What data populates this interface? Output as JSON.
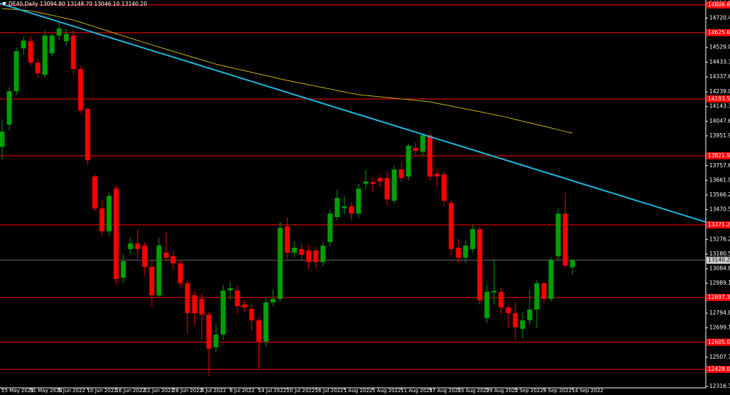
{
  "chart_data": {
    "type": "candlestick",
    "title": "DE40,Daily  13094.80 13148.70 13046.10 13140.20",
    "categories": [
      "25 May 2022",
      null,
      null,
      null,
      "31 May 2022",
      null,
      null,
      null,
      "6 Jun 2022",
      null,
      null,
      null,
      "10 Jun 2022",
      null,
      null,
      null,
      "16 Jun 2022",
      null,
      null,
      null,
      "22 Jun 2022",
      null,
      null,
      null,
      "28 Jun 2022",
      null,
      null,
      null,
      "4 Jul 2022",
      null,
      null,
      null,
      "8 Jul 2022",
      null,
      null,
      null,
      "14 Jul 2022",
      null,
      null,
      null,
      "20 Jul 2022",
      null,
      null,
      null,
      "26 Jul 2022",
      null,
      null,
      null,
      "1 Aug 2022",
      null,
      null,
      null,
      "5 Aug 2022",
      null,
      null,
      null,
      "11 Aug 2022",
      null,
      null,
      null,
      "17 Aug 2022",
      null,
      null,
      null,
      "23 Aug 2022",
      null,
      null,
      null,
      "29 Aug 2022",
      null,
      null,
      null,
      "2 Sep 2022",
      null,
      null,
      null,
      "8 Sep 2022",
      null,
      null,
      null,
      "14 Sep 2022"
    ],
    "open": [
      13880,
      14026,
      14244,
      14523,
      14570,
      14430,
      14351,
      14491,
      14607,
      14570,
      14607,
      14388,
      14128,
      13687,
      13478,
      13329,
      13608,
      13027,
      13213,
      13250,
      13236,
      13097,
      12911,
      13190,
      13166,
      13120,
      12990,
      12911,
      12888,
      12786,
      12572,
      12655,
      12943,
      12943,
      12851,
      12823,
      12748,
      12609,
      12865,
      12888,
      13362,
      13190,
      13213,
      13204,
      13204,
      13129,
      13259,
      13422,
      13480,
      13492,
      13445,
      13640,
      13650,
      13677,
      13677,
      13529,
      13733,
      13687,
      13873,
      13849,
      13956,
      13705,
      13701,
      13515,
      13222,
      13157,
      13213,
      13343,
      12762,
      12930,
      12934,
      12832,
      12795,
      12693,
      12748,
      12818,
      12990,
      12888,
      13166,
      13445,
      13094.8
    ],
    "high": [
      14060,
      14270,
      14530,
      14600,
      14600,
      14460,
      14640,
      14620,
      14700,
      14650,
      14640,
      14410,
      14140,
      13700,
      13530,
      13580,
      13630,
      13180,
      13290,
      13340,
      13260,
      13140,
      13290,
      13320,
      13200,
      13140,
      13010,
      12940,
      12920,
      12800,
      12720,
      12980,
      13000,
      12970,
      12880,
      12850,
      12770,
      12900,
      12950,
      13390,
      13420,
      13260,
      13250,
      13240,
      13230,
      13260,
      13470,
      13600,
      13560,
      13520,
      13640,
      13730,
      13680,
      13700,
      13720,
      13760,
      13780,
      13900,
      13910,
      13960,
      13965,
      13740,
      13720,
      13530,
      13280,
      13270,
      13370,
      13360,
      12980,
      13150,
      12960,
      12850,
      12870,
      12800,
      12950,
      13010,
      13000,
      13160,
      13480,
      13585,
      13148.7
    ],
    "low": [
      13800,
      13990,
      14220,
      14480,
      14410,
      14330,
      14330,
      14470,
      14580,
      14540,
      14360,
      14100,
      13760,
      13460,
      13300,
      13300,
      12980,
      12990,
      13180,
      13150,
      13040,
      12840,
      12900,
      13130,
      13080,
      12960,
      12660,
      12720,
      12620,
      12385,
      12540,
      12620,
      12880,
      12790,
      12800,
      12680,
      12432,
      12580,
      12840,
      12870,
      13150,
      13160,
      13140,
      13080,
      13090,
      13100,
      13230,
      13400,
      13440,
      13400,
      13420,
      13600,
      13590,
      13620,
      13500,
      13510,
      13650,
      13660,
      13830,
      13820,
      13660,
      13620,
      13500,
      13170,
      13120,
      13120,
      13190,
      12850,
      12730,
      12850,
      12790,
      12700,
      12620,
      12630,
      12720,
      12700,
      12860,
      12870,
      13140,
      13090,
      13046.1
    ],
    "close": [
      13980,
      14244,
      14505,
      14574,
      14430,
      14360,
      14607,
      14607,
      14653,
      14616,
      14388,
      14119,
      13794,
      13478,
      13329,
      13561,
      13018,
      13134,
      13250,
      13213,
      13097,
      12911,
      13236,
      13157,
      13120,
      12990,
      12795,
      12795,
      12786,
      12563,
      12655,
      12943,
      12957,
      12841,
      12832,
      12748,
      12609,
      12865,
      12888,
      13352,
      13190,
      13222,
      13176,
      13129,
      13129,
      13236,
      13445,
      13547,
      13492,
      13445,
      13608,
      13654,
      13640,
      13654,
      13538,
      13733,
      13677,
      13887,
      13854,
      13956,
      13687,
      13687,
      13529,
      13213,
      13157,
      13236,
      13343,
      12878,
      12934,
      12940,
      12832,
      12795,
      12702,
      12748,
      12818,
      12990,
      12888,
      13143,
      13445,
      13106,
      13140.2
    ],
    "up_color": "#00a000",
    "down_color": "#ff0000",
    "moving_average": {
      "color": "#c8b400",
      "values": [
        14783,
        14780,
        14776,
        14773,
        14769,
        14759,
        14749,
        14739,
        14729,
        14719,
        14708,
        14694,
        14679,
        14664,
        14649,
        14634,
        14619,
        14604,
        14590,
        14575,
        14560,
        14546,
        14532,
        14518,
        14504,
        14490,
        14476,
        14462,
        14448,
        14434,
        14420,
        14410,
        14399,
        14388,
        14378,
        14367,
        14356,
        14346,
        14335,
        14324,
        14314,
        14304,
        14295,
        14286,
        14276,
        14267,
        14258,
        14248,
        14239,
        14230,
        14221,
        14216,
        14212,
        14207,
        14202,
        14198,
        14193,
        14189,
        14184,
        14179,
        14175,
        14165,
        14156,
        14147,
        14137,
        14128,
        14119,
        14110,
        14100,
        14091,
        14082,
        14071,
        14059,
        14048,
        14037,
        14026,
        14015,
        14004,
        13992,
        13981,
        13970
      ]
    },
    "trend_line": {
      "color": "#1cb8e0",
      "values": [
        14816.1,
        13389.8
      ]
    },
    "levels": {
      "color": "#ff0000",
      "values": [
        {
          "value": 14806.8,
          "label": "14806.80"
        },
        {
          "value": 14625.6,
          "label": "14625.60"
        },
        {
          "value": 14193.5,
          "label": "14193.50"
        },
        {
          "value": 13821.9,
          "label": "13821.90"
        },
        {
          "value": 13371.2,
          "label": "13371.20"
        },
        {
          "value": 12897.3,
          "label": "12897.30"
        },
        {
          "value": 12605,
          "label": "12605.00"
        },
        {
          "value": 12428,
          "label": "12428.00"
        }
      ]
    },
    "current_price": {
      "value": 13140.2,
      "label": "13140.20"
    },
    "ylim": [
      12307,
      14839
    ],
    "yticks": [
      {
        "value": 14816.1,
        "label": "14816.10"
      },
      {
        "value": 14720.4,
        "label": "14720.40"
      },
      {
        "value": 14529,
        "label": "14529.00"
      },
      {
        "value": 14433.3,
        "label": "14433.30"
      },
      {
        "value": 14337.6,
        "label": "14337.60"
      },
      {
        "value": 14239,
        "label": "14239.00"
      },
      {
        "value": 14143.3,
        "label": "14143.30"
      },
      {
        "value": 14047.6,
        "label": "14047.60"
      },
      {
        "value": 13951.9,
        "label": "13951.90"
      },
      {
        "value": 13757.6,
        "label": "13757.60"
      },
      {
        "value": 13661.9,
        "label": "13661.90"
      },
      {
        "value": 13566.2,
        "label": "13566.20"
      },
      {
        "value": 13470.5,
        "label": "13470.50"
      },
      {
        "value": 13276.2,
        "label": "13276.20"
      },
      {
        "value": 13180.5,
        "label": "13180.50"
      },
      {
        "value": 13084.8,
        "label": "13084.80"
      },
      {
        "value": 12989.1,
        "label": "12989.10"
      },
      {
        "value": 12794.8,
        "label": "12794.80"
      },
      {
        "value": 12699.1,
        "label": "12699.10"
      },
      {
        "value": 12507.7,
        "label": "12507.70"
      },
      {
        "value": 12316.3,
        "label": "12316.30"
      }
    ],
    "grid": false
  }
}
